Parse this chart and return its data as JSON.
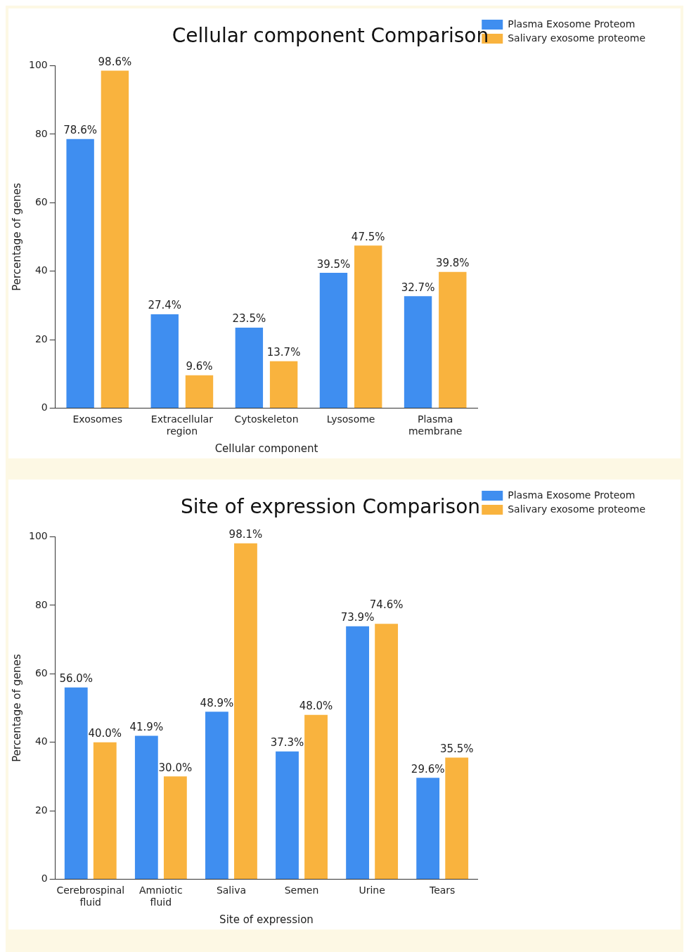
{
  "chart_data": [
    {
      "type": "bar",
      "title": "Cellular component Comparison",
      "xlabel": "Cellular component",
      "ylabel": "Percentage of genes",
      "categories": [
        "Exosomes",
        "Extracellular region",
        "Cytoskeleton",
        "Lysosome",
        "Plasma membrane"
      ],
      "series": [
        {
          "name": "Plasma Exosome Proteom",
          "color": "#3f8ef0",
          "values": [
            78.6,
            27.4,
            23.5,
            39.5,
            32.7
          ],
          "value_labels": [
            "78.6%",
            "27.4%",
            "23.5%",
            "39.5%",
            "32.7%"
          ]
        },
        {
          "name": "Salivary exosome proteome",
          "color": "#f9b33e",
          "values": [
            98.6,
            9.6,
            13.7,
            47.5,
            39.8
          ],
          "value_labels": [
            "98.6%",
            "9.6%",
            "13.7%",
            "47.5%",
            "39.8%"
          ]
        }
      ],
      "ylim": [
        0,
        100
      ],
      "yticks": [
        0,
        20,
        40,
        60,
        80,
        100
      ],
      "grid": false,
      "legend": "top right"
    },
    {
      "type": "bar",
      "title": "Site of expression Comparison",
      "xlabel": "Site of expression",
      "ylabel": "Percentage of genes",
      "categories": [
        "Cerebrospinal fluid",
        "Amniotic fluid",
        "Saliva",
        "Semen",
        "Urine",
        "Tears"
      ],
      "series": [
        {
          "name": "Plasma Exosome Proteom",
          "color": "#3f8ef0",
          "values": [
            56.0,
            41.9,
            48.9,
            37.3,
            73.9,
            29.6
          ],
          "value_labels": [
            "56.0%",
            "41.9%",
            "48.9%",
            "37.3%",
            "73.9%",
            "29.6%"
          ]
        },
        {
          "name": "Salivary exosome proteome",
          "color": "#f9b33e",
          "values": [
            40.0,
            30.0,
            98.1,
            48.0,
            74.6,
            35.5
          ],
          "value_labels": [
            "40.0%",
            "30.0%",
            "98.1%",
            "48.0%",
            "74.6%",
            "35.5%"
          ]
        }
      ],
      "ylim": [
        0,
        100
      ],
      "yticks": [
        0,
        20,
        40,
        60,
        80,
        100
      ],
      "grid": false,
      "legend": "top right"
    }
  ]
}
